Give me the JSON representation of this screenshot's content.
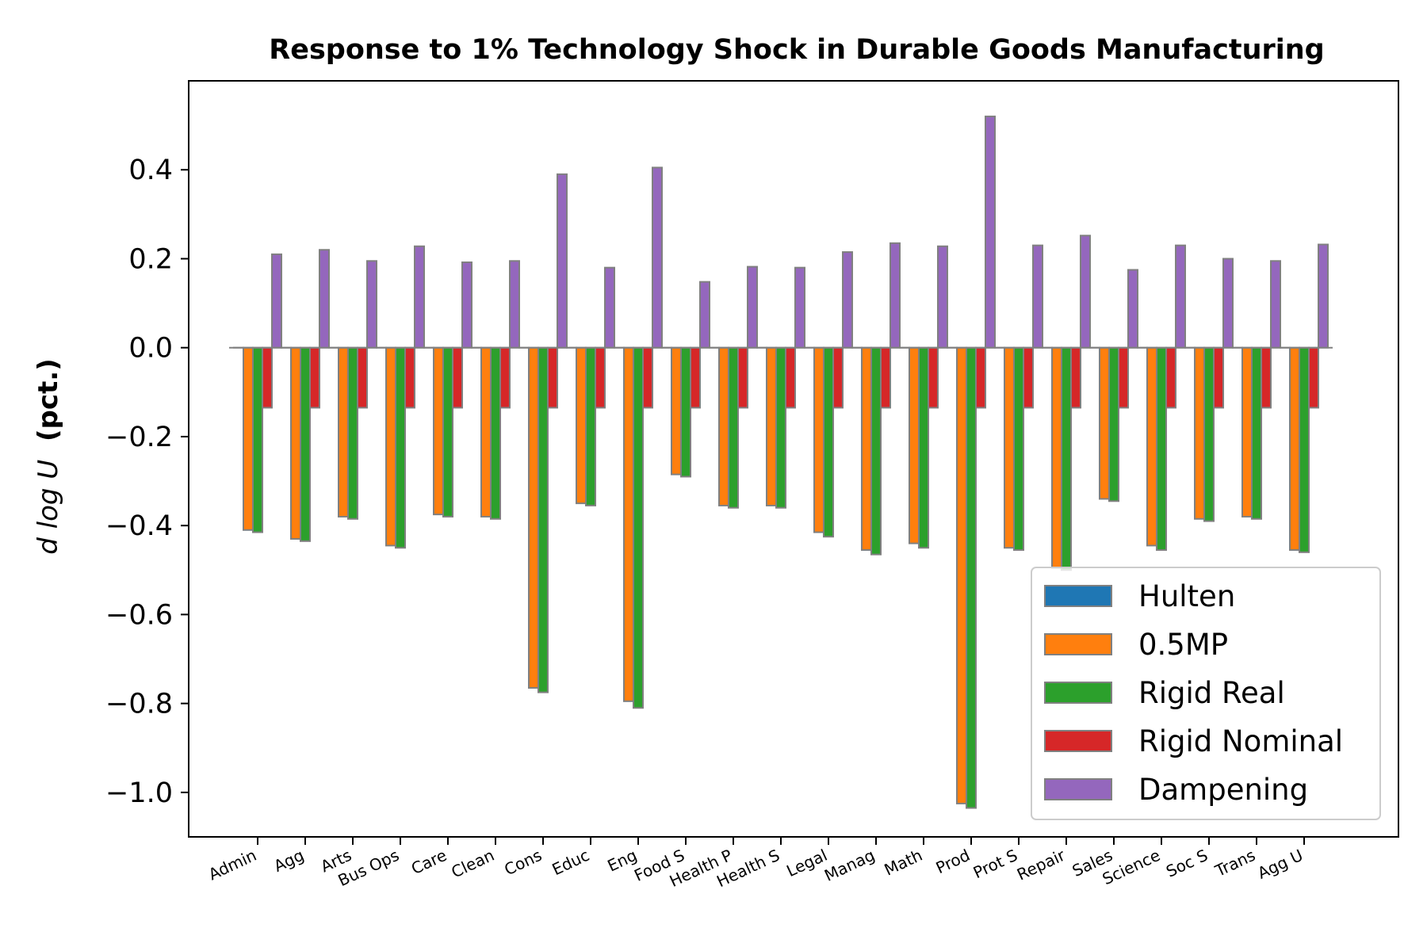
{
  "chart_data": {
    "type": "bar",
    "title": "Response to 1% Technology Shock in Durable Goods Manufacturing",
    "ylabel_math": "d log U",
    "ylabel_unit": "(pct.)",
    "xlabel": "",
    "ylim": [
      -1.1,
      0.6
    ],
    "yticks": [
      0.4,
      0.2,
      0.0,
      -0.2,
      -0.4,
      -0.6,
      -0.8,
      -1.0
    ],
    "ytick_labels": [
      "0.4",
      "0.2",
      "0.0",
      "−0.2",
      "−0.4",
      "−0.6",
      "−0.8",
      "−1.0"
    ],
    "grid": false,
    "legend_position": "lower-right",
    "categories": [
      "Admin",
      "Agg",
      "Arts",
      "Bus Ops",
      "Care",
      "Clean",
      "Cons",
      "Educ",
      "Eng",
      "Food S",
      "Health P",
      "Health S",
      "Legal",
      "Manag",
      "Math",
      "Prod",
      "Prot S",
      "Repair",
      "Sales",
      "Science",
      "Soc S",
      "Trans",
      "Agg U"
    ],
    "series": [
      {
        "name": "Hulten",
        "color": "#1f77b4",
        "values": [
          0,
          0,
          0,
          0,
          0,
          0,
          0,
          0,
          0,
          0,
          0,
          0,
          0,
          0,
          0,
          0,
          0,
          0,
          0,
          0,
          0,
          0,
          0
        ]
      },
      {
        "name": "0.5MP",
        "color": "#ff7f0e",
        "values": [
          -0.41,
          -0.43,
          -0.38,
          -0.445,
          -0.375,
          -0.38,
          -0.765,
          -0.35,
          -0.795,
          -0.285,
          -0.355,
          -0.355,
          -0.415,
          -0.455,
          -0.44,
          -1.025,
          -0.45,
          -0.495,
          -0.34,
          -0.445,
          -0.385,
          -0.38,
          -0.455
        ]
      },
      {
        "name": "Rigid Real",
        "color": "#2ca02c",
        "values": [
          -0.415,
          -0.435,
          -0.385,
          -0.45,
          -0.38,
          -0.385,
          -0.775,
          -0.355,
          -0.81,
          -0.29,
          -0.36,
          -0.36,
          -0.425,
          -0.465,
          -0.45,
          -1.035,
          -0.455,
          -0.5,
          -0.345,
          -0.455,
          -0.39,
          -0.385,
          -0.46
        ]
      },
      {
        "name": "Rigid Nominal",
        "color": "#d62728",
        "values": [
          -0.135,
          -0.135,
          -0.135,
          -0.135,
          -0.135,
          -0.135,
          -0.135,
          -0.135,
          -0.135,
          -0.135,
          -0.135,
          -0.135,
          -0.135,
          -0.135,
          -0.135,
          -0.135,
          -0.135,
          -0.135,
          -0.135,
          -0.135,
          -0.135,
          -0.135,
          -0.135
        ]
      },
      {
        "name": "Dampening",
        "color": "#9467bd",
        "values": [
          0.21,
          0.22,
          0.195,
          0.228,
          0.192,
          0.195,
          0.39,
          0.18,
          0.405,
          0.148,
          0.182,
          0.18,
          0.215,
          0.235,
          0.228,
          0.52,
          0.23,
          0.252,
          0.175,
          0.23,
          0.2,
          0.195,
          0.232
        ]
      }
    ]
  }
}
